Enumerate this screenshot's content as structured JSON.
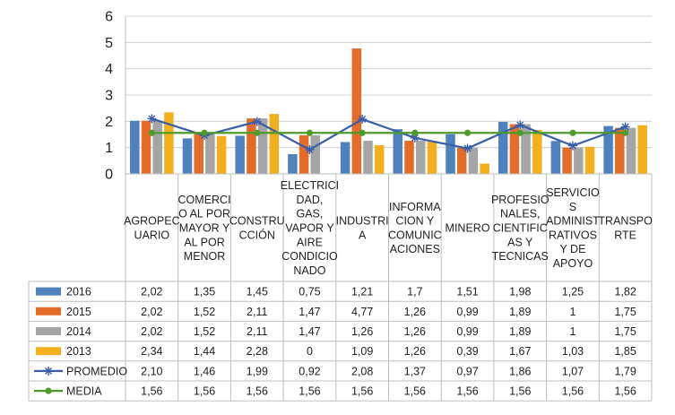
{
  "chart_data": {
    "type": "bar",
    "title": "",
    "xlabel": "",
    "ylabel": "",
    "ylim": [
      0,
      6
    ],
    "yticks": [
      "0",
      "1",
      "2",
      "3",
      "4",
      "5",
      "6"
    ],
    "grid": true,
    "legend_placement": "bottom (data table)",
    "categories": [
      "AGROPECUARIO",
      "COMERCIO AL POR MAYOR Y AL POR MENOR",
      "CONSTRUCCIÓN",
      "ELECTRICIDAD, GAS, VAPOR Y AIRE CONDICIONADO",
      "INDUSTRIA",
      "INFORMACION Y COMUNICACIONES",
      "MINERO",
      "PROFESIONALES, CIENTIFICAS Y TECNICAS",
      "SERVICIOS ADMINISTRATIVOS Y DE APOYO",
      "TRANSPORTE"
    ],
    "category_label_lines": [
      [
        "AGROPEC",
        "UARIO"
      ],
      [
        "COMERCI",
        "O AL POR",
        "MAYOR Y",
        "AL POR",
        "MENOR"
      ],
      [
        "CONSTRU",
        "CCIÓN"
      ],
      [
        "ELECTRICI",
        "DAD,",
        "GAS,",
        "VAPOR Y",
        "AIRE",
        "CONDICIO",
        "NADO"
      ],
      [
        "INDUSTRI",
        "A"
      ],
      [
        "INFORMA",
        "CION Y",
        "COMUNIC",
        "ACIONES"
      ],
      [
        "MINERO"
      ],
      [
        "PROFESIO",
        "NALES,",
        "CIENTIFIC",
        "AS Y",
        "TECNICAS"
      ],
      [
        "SERVICIO",
        "S",
        "ADMINIST",
        "RATIVOS",
        "Y DE",
        "APOYO"
      ],
      [
        "TRANSPO",
        "RTE"
      ]
    ],
    "series": [
      {
        "name": "2016",
        "kind": "bar",
        "color": "#4f81bd",
        "values": [
          2.02,
          1.35,
          1.45,
          0.75,
          1.21,
          1.7,
          1.51,
          1.98,
          1.25,
          1.82
        ],
        "labels": [
          "2,02",
          "1,35",
          "1,45",
          "0,75",
          "1,21",
          "1,7",
          "1,51",
          "1,98",
          "1,25",
          "1,82"
        ]
      },
      {
        "name": "2015",
        "kind": "bar",
        "color": "#e46c2a",
        "values": [
          2.02,
          1.52,
          2.11,
          1.47,
          4.77,
          1.26,
          0.99,
          1.89,
          1,
          1.75
        ],
        "labels": [
          "2,02",
          "1,52",
          "2,11",
          "1,47",
          "4,77",
          "1,26",
          "0,99",
          "1,89",
          "1",
          "1,75"
        ]
      },
      {
        "name": "2014",
        "kind": "bar",
        "color": "#a5a5a5",
        "values": [
          2.02,
          1.52,
          2.11,
          1.47,
          1.26,
          1.26,
          0.99,
          1.89,
          1,
          1.75
        ],
        "labels": [
          "2,02",
          "1,52",
          "2,11",
          "1,47",
          "1,26",
          "1,26",
          "0,99",
          "1,89",
          "1",
          "1,75"
        ]
      },
      {
        "name": "2013",
        "kind": "bar",
        "color": "#f2b01e",
        "values": [
          2.34,
          1.44,
          2.28,
          0,
          1.09,
          1.26,
          0.39,
          1.67,
          1.03,
          1.85
        ],
        "labels": [
          "2,34",
          "1,44",
          "2,28",
          "0",
          "1,09",
          "1,26",
          "0,39",
          "1,67",
          "1,03",
          "1,85"
        ]
      },
      {
        "name": "PROMEDIO",
        "kind": "line",
        "marker": "star",
        "color": "#3a5ea8",
        "values": [
          2.1,
          1.46,
          1.99,
          0.92,
          2.08,
          1.37,
          0.97,
          1.86,
          1.07,
          1.79
        ],
        "labels": [
          "2,10",
          "1,46",
          "1,99",
          "0,92",
          "2,08",
          "1,37",
          "0,97",
          "1,86",
          "1,07",
          "1,79"
        ]
      },
      {
        "name": "MEDIA",
        "kind": "line",
        "marker": "circle",
        "color": "#4e9a2a",
        "values": [
          1.56,
          1.56,
          1.56,
          1.56,
          1.56,
          1.56,
          1.56,
          1.56,
          1.56,
          1.56
        ],
        "labels": [
          "1,56",
          "1,56",
          "1,56",
          "1,56",
          "1,56",
          "1,56",
          "1,56",
          "1,56",
          "1,56",
          "1,56"
        ]
      }
    ]
  }
}
